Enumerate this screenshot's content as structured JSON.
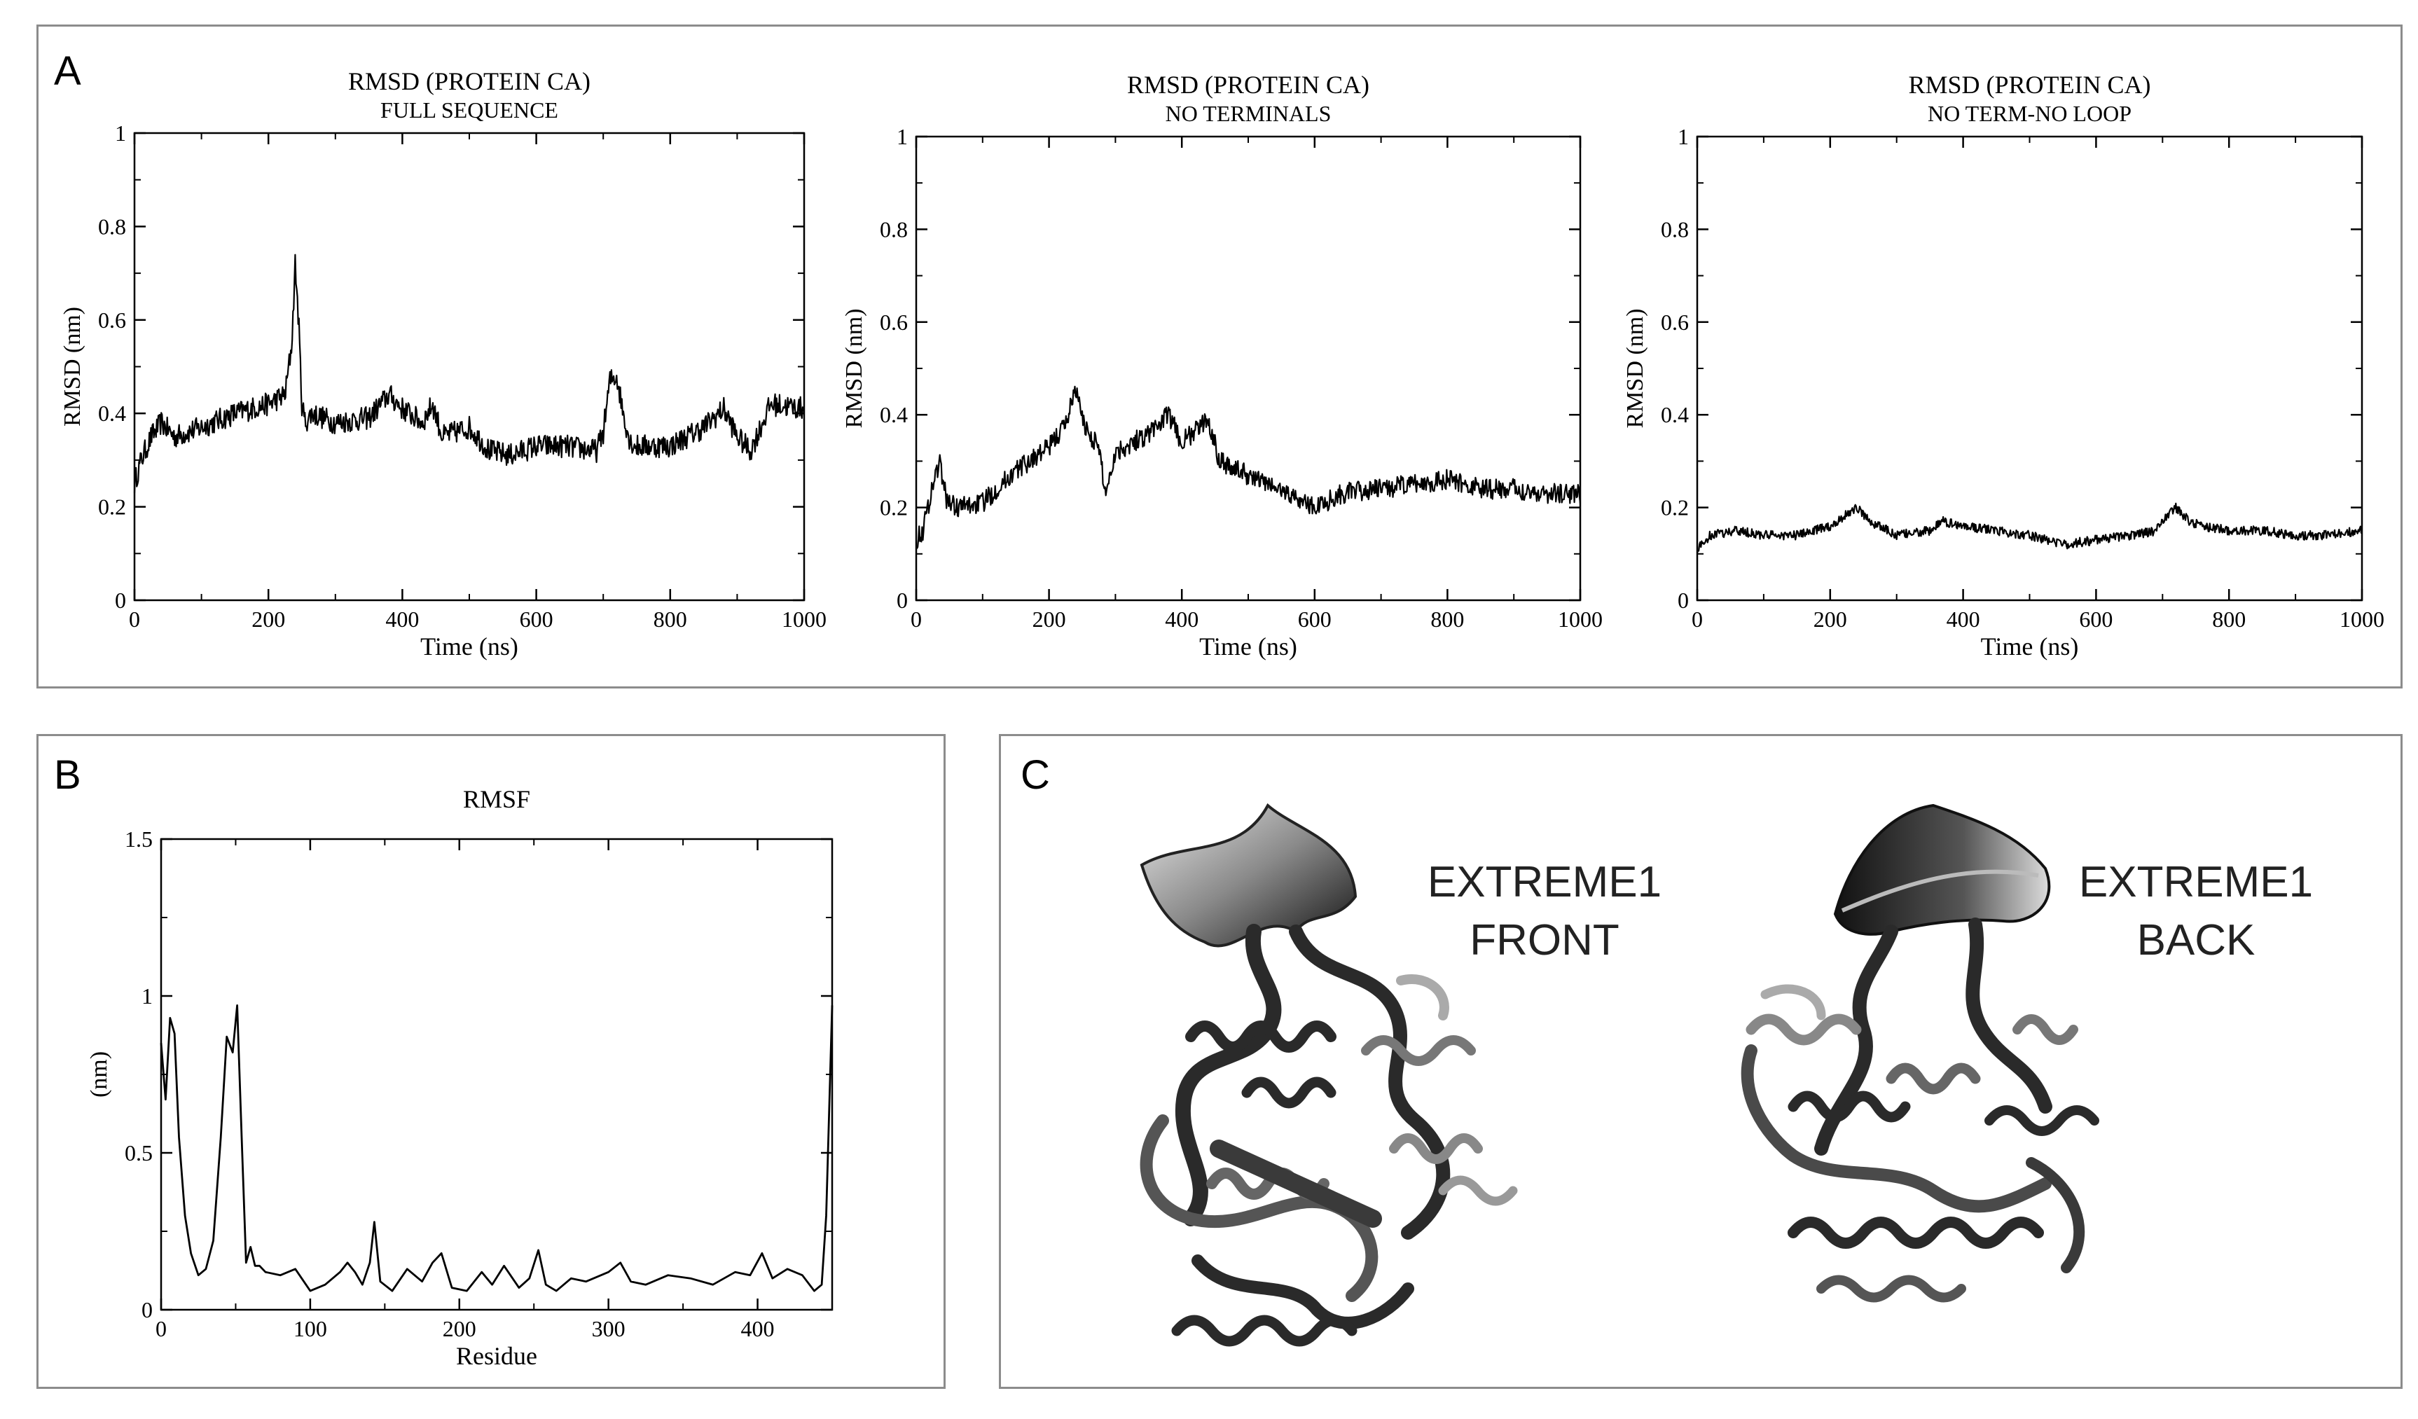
{
  "panels": {
    "a_letter": "A",
    "b_letter": "B",
    "c_letter": "C"
  },
  "chart_data": [
    {
      "id": "rmsd_full",
      "type": "line",
      "title": "RMSD (PROTEIN CA)",
      "subtitle": "FULL SEQUENCE",
      "xlabel": "Time (ns)",
      "ylabel": "RMSD (nm)",
      "xlim": [
        0,
        1000
      ],
      "ylim": [
        0,
        1
      ],
      "xticks": [
        0,
        200,
        400,
        600,
        800,
        1000
      ],
      "yticks": [
        0,
        0.2,
        0.4,
        0.6,
        0.8,
        1
      ],
      "ytick_labels": [
        "0",
        "0.2",
        "0.4",
        "0.6",
        "0.8",
        "1"
      ],
      "noise": 0.025,
      "x": [
        0,
        10,
        25,
        40,
        60,
        100,
        150,
        200,
        225,
        235,
        240,
        245,
        250,
        255,
        265,
        300,
        350,
        380,
        400,
        430,
        445,
        460,
        500,
        530,
        560,
        600,
        640,
        690,
        700,
        710,
        720,
        730,
        740,
        750,
        800,
        850,
        880,
        900,
        920,
        950,
        1000
      ],
      "y": [
        0.25,
        0.3,
        0.35,
        0.38,
        0.35,
        0.37,
        0.4,
        0.42,
        0.44,
        0.55,
        0.72,
        0.6,
        0.42,
        0.38,
        0.4,
        0.38,
        0.39,
        0.44,
        0.41,
        0.38,
        0.42,
        0.35,
        0.37,
        0.32,
        0.31,
        0.33,
        0.33,
        0.32,
        0.36,
        0.47,
        0.48,
        0.4,
        0.34,
        0.33,
        0.33,
        0.37,
        0.41,
        0.35,
        0.32,
        0.42,
        0.41
      ]
    },
    {
      "id": "rmsd_noterm",
      "type": "line",
      "title": "RMSD (PROTEIN CA)",
      "subtitle": "NO TERMINALS",
      "xlabel": "Time (ns)",
      "ylabel": "RMSD (nm)",
      "xlim": [
        0,
        1000
      ],
      "ylim": [
        0,
        1
      ],
      "xticks": [
        0,
        200,
        400,
        600,
        800,
        1000
      ],
      "yticks": [
        0,
        0.2,
        0.4,
        0.6,
        0.8,
        1
      ],
      "ytick_labels": [
        "0",
        "0.2",
        "0.4",
        "0.6",
        "0.8",
        "1"
      ],
      "noise": 0.022,
      "x": [
        0,
        10,
        25,
        35,
        45,
        60,
        100,
        150,
        200,
        225,
        240,
        250,
        260,
        275,
        285,
        300,
        350,
        380,
        400,
        440,
        455,
        470,
        500,
        530,
        560,
        600,
        640,
        700,
        750,
        800,
        850,
        900,
        950,
        1000
      ],
      "y": [
        0.13,
        0.15,
        0.25,
        0.3,
        0.22,
        0.2,
        0.21,
        0.28,
        0.33,
        0.38,
        0.46,
        0.39,
        0.36,
        0.33,
        0.23,
        0.32,
        0.36,
        0.4,
        0.34,
        0.39,
        0.31,
        0.29,
        0.27,
        0.25,
        0.23,
        0.2,
        0.23,
        0.24,
        0.25,
        0.26,
        0.24,
        0.24,
        0.23,
        0.23
      ]
    },
    {
      "id": "rmsd_noloop",
      "type": "line",
      "title": "RMSD (PROTEIN CA)",
      "subtitle": "NO TERM-NO LOOP",
      "xlabel": "Time (ns)",
      "ylabel": "RMSD (nm)",
      "xlim": [
        0,
        1000
      ],
      "ylim": [
        0,
        1
      ],
      "xticks": [
        0,
        200,
        400,
        600,
        800,
        1000
      ],
      "yticks": [
        0,
        0.2,
        0.4,
        0.6,
        0.8,
        1
      ],
      "ytick_labels": [
        "0",
        "0.2",
        "0.4",
        "0.6",
        "0.8",
        "1"
      ],
      "noise": 0.01,
      "x": [
        0,
        20,
        60,
        100,
        150,
        200,
        240,
        260,
        300,
        350,
        370,
        400,
        450,
        500,
        550,
        600,
        650,
        690,
        710,
        720,
        740,
        760,
        800,
        850,
        900,
        950,
        1000
      ],
      "y": [
        0.11,
        0.14,
        0.15,
        0.14,
        0.14,
        0.16,
        0.2,
        0.17,
        0.14,
        0.15,
        0.17,
        0.16,
        0.15,
        0.14,
        0.12,
        0.13,
        0.14,
        0.15,
        0.19,
        0.2,
        0.17,
        0.16,
        0.15,
        0.15,
        0.14,
        0.14,
        0.15
      ]
    },
    {
      "id": "rmsf",
      "type": "line",
      "title": "RMSF",
      "subtitle": "",
      "xlabel": "Residue",
      "ylabel": "(nm)",
      "xlim": [
        0,
        450
      ],
      "ylim": [
        0,
        1.5
      ],
      "xticks": [
        0,
        100,
        200,
        300,
        400
      ],
      "yticks": [
        0,
        0.5,
        1,
        1.5
      ],
      "ytick_labels": [
        "0",
        "0.5",
        "1",
        "1.5"
      ],
      "noise": 0,
      "x": [
        0,
        3,
        6,
        9,
        12,
        16,
        20,
        25,
        30,
        35,
        40,
        44,
        48,
        51,
        54,
        57,
        60,
        63,
        66,
        70,
        80,
        90,
        100,
        110,
        120,
        125,
        130,
        135,
        140,
        143,
        147,
        155,
        165,
        175,
        182,
        188,
        195,
        205,
        215,
        222,
        230,
        240,
        247,
        253,
        258,
        265,
        275,
        285,
        300,
        308,
        315,
        325,
        340,
        355,
        370,
        385,
        395,
        403,
        410,
        420,
        430,
        438,
        443,
        446,
        450
      ],
      "y": [
        0.85,
        0.67,
        0.93,
        0.88,
        0.55,
        0.3,
        0.18,
        0.11,
        0.13,
        0.22,
        0.55,
        0.87,
        0.82,
        0.97,
        0.55,
        0.15,
        0.2,
        0.14,
        0.14,
        0.12,
        0.11,
        0.13,
        0.06,
        0.08,
        0.12,
        0.15,
        0.12,
        0.08,
        0.15,
        0.28,
        0.09,
        0.06,
        0.13,
        0.09,
        0.15,
        0.18,
        0.07,
        0.06,
        0.12,
        0.08,
        0.14,
        0.07,
        0.1,
        0.19,
        0.08,
        0.06,
        0.1,
        0.09,
        0.12,
        0.15,
        0.09,
        0.08,
        0.11,
        0.1,
        0.08,
        0.12,
        0.11,
        0.18,
        0.1,
        0.13,
        0.11,
        0.06,
        0.08,
        0.3,
        0.97
      ]
    }
  ],
  "structures": {
    "front_label_line1": "EXTREME1",
    "front_label_line2": "FRONT",
    "back_label_line1": "EXTREME1",
    "back_label_line2": "BACK"
  }
}
